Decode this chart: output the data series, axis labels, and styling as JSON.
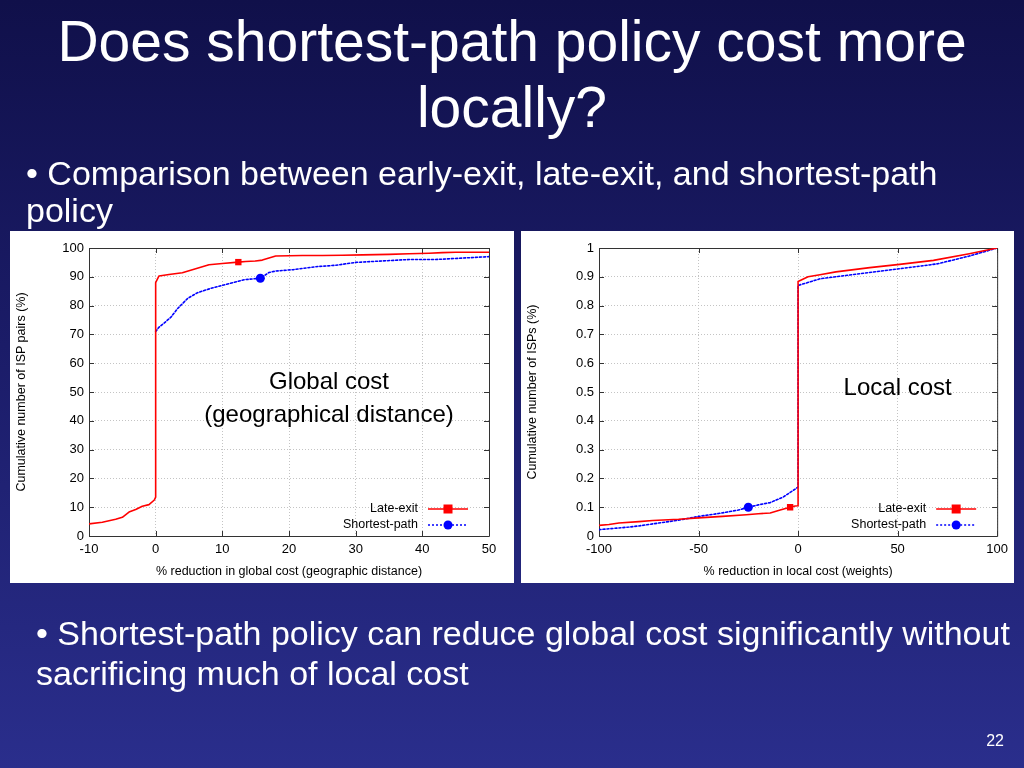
{
  "chart_data": [
    {
      "type": "line",
      "title": "Does shortest-path policy cost more locally?",
      "subtitle": "• Comparison between early-exit, late-exit, and shortest-path policy",
      "xlabel": "% reduction in global cost (geographic distance)",
      "ylabel": "Cumulative number of ISP pairs (%)",
      "annotations": [
        "Global cost\n(geographical distance)"
      ],
      "xlim": [
        -10,
        50
      ],
      "xticks": [
        -10,
        0,
        10,
        20,
        30,
        40,
        50
      ],
      "ylim": [
        0,
        100
      ],
      "yticks": [
        0,
        10,
        20,
        30,
        40,
        50,
        60,
        70,
        80,
        90,
        100
      ],
      "grid": true,
      "legend": "bottom right",
      "series": [
        {
          "name": "Late-exit",
          "color": "#ff0000",
          "line_style": "solid",
          "x": [
            -10,
            -8,
            -6,
            -5,
            -4,
            -3,
            -2,
            -1,
            -0.2,
            0,
            0,
            0.5,
            2,
            4,
            6,
            8,
            10,
            12.4,
            13.5,
            15,
            16,
            17,
            18,
            20,
            22,
            25,
            28,
            31,
            35,
            38,
            41,
            43,
            45,
            47,
            50
          ],
          "values": [
            4.2,
            4.8,
            5.8,
            6.5,
            8.3,
            9.2,
            10.3,
            10.9,
            12.5,
            13.5,
            88,
            90.3,
            90.8,
            91.4,
            92.8,
            94.2,
            94.6,
            95.1,
            95.3,
            95.5,
            95.8,
            96.5,
            97.2,
            97.3,
            97.4,
            97.4,
            97.5,
            97.6,
            97.8,
            98,
            98.2,
            98.4,
            98.5,
            98.5,
            98.5
          ]
        },
        {
          "type": "scatter",
          "color": "#ff0000",
          "marker": "square",
          "x": [
            12.4
          ],
          "values": [
            95.1
          ]
        },
        {
          "name": "Shortest-path",
          "color": "#0000ff",
          "line_style": "dotted",
          "x": [
            0,
            0.5,
            1.3,
            2.3,
            3.3,
            4.8,
            6.3,
            8.3,
            10.8,
            13.3,
            15.7,
            17,
            18,
            20.7,
            24,
            27,
            30,
            34,
            38,
            42,
            50
          ],
          "values": [
            71,
            72.5,
            74,
            76,
            79,
            82.5,
            84.5,
            86,
            87.5,
            89,
            89.5,
            91.5,
            92,
            92.5,
            93.5,
            94,
            95,
            95.5,
            96,
            96,
            97
          ]
        },
        {
          "type": "scatter",
          "color": "#0000ff",
          "marker": "circle",
          "x": [
            15.7
          ],
          "values": [
            89.5
          ]
        }
      ]
    },
    {
      "type": "line",
      "xlabel": "% reduction in local cost (weights)",
      "ylabel": "Cumulative number of ISPs (%)",
      "annotations": [
        "Local cost",
        "• Shortest-path policy can reduce global cost significantly without sacrificing much of local cost",
        "22"
      ],
      "xlim": [
        -100,
        100
      ],
      "xticks": [
        -100,
        -50,
        0,
        50,
        100
      ],
      "ylim": [
        0,
        1
      ],
      "yticks": [
        0,
        0.1,
        0.2,
        0.3,
        0.4,
        0.5,
        0.6,
        0.7,
        0.8,
        0.9,
        1
      ],
      "grid": true,
      "legend": "bottom right",
      "series": [
        {
          "name": "Late-exit",
          "color": "#ff0000",
          "line_style": "solid",
          "x": [
            -100,
            -95,
            -90,
            -80,
            -73,
            -60,
            -50,
            -38,
            -26,
            -20,
            -14,
            -9,
            -4,
            -1.5,
            0,
            0,
            5,
            11,
            19,
            28,
            36,
            51,
            68,
            86,
            100
          ],
          "values": [
            0.037,
            0.04,
            0.045,
            0.05,
            0.054,
            0.058,
            0.063,
            0.068,
            0.074,
            0.077,
            0.08,
            0.09,
            0.1,
            0.104,
            0.105,
            0.884,
            0.9,
            0.907,
            0.917,
            0.925,
            0.932,
            0.943,
            0.957,
            0.98,
            1
          ]
        },
        {
          "type": "scatter",
          "color": "#ff0000",
          "marker": "square",
          "x": [
            -4
          ],
          "values": [
            0.1
          ]
        },
        {
          "name": "Shortest-path",
          "color": "#0000ff",
          "line_style": "dotted",
          "x": [
            -100,
            -95,
            -90,
            -85,
            -80,
            -75,
            -70,
            -65,
            -60,
            -50,
            -40,
            -30,
            -25,
            -20,
            -14,
            -7.5,
            -1,
            0,
            0,
            11,
            28,
            51,
            70,
            86,
            100
          ],
          "values": [
            0.022,
            0.025,
            0.028,
            0.031,
            0.035,
            0.04,
            0.045,
            0.05,
            0.055,
            0.068,
            0.078,
            0.09,
            0.1,
            0.108,
            0.116,
            0.135,
            0.165,
            0.17,
            0.87,
            0.893,
            0.908,
            0.928,
            0.945,
            0.972,
            1
          ]
        },
        {
          "type": "scatter",
          "color": "#0000ff",
          "marker": "circle",
          "x": [
            -25
          ],
          "values": [
            0.1
          ]
        }
      ]
    }
  ]
}
